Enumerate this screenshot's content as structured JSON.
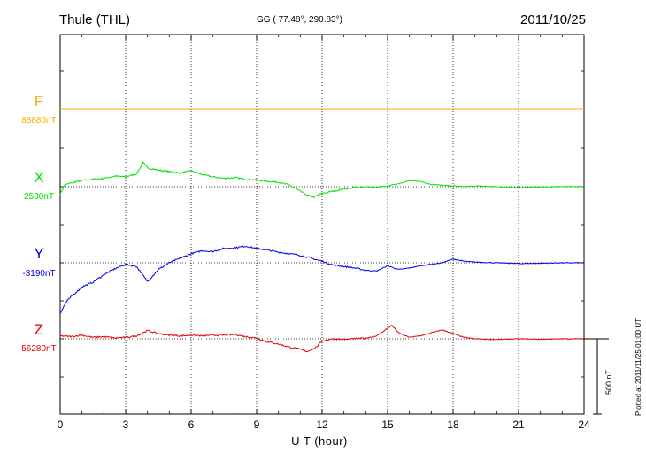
{
  "header": {
    "station": "Thule (THL)",
    "coords": "GG ( 77.48°, 290.83°)",
    "date": "2011/10/25"
  },
  "footer": {
    "xlabel": "U T (hour)",
    "plotted": "Plotted at 2011/11/25 01:00 UT",
    "scale_label": "500 nT"
  },
  "chart_data": {
    "type": "line",
    "title": "Thule (THL)",
    "xlabel": "U T (hour)",
    "ylabel": "",
    "xlim": [
      0,
      24
    ],
    "x_ticks": [
      0,
      3,
      6,
      9,
      12,
      15,
      18,
      21,
      24
    ],
    "grid": true,
    "scale_bar_nT": 500,
    "series": [
      {
        "name": "F",
        "baseline_label": "88880nT",
        "color": "#ffaa00",
        "x": [
          0,
          24
        ],
        "values": [
          0,
          0
        ]
      },
      {
        "name": "X",
        "baseline_label": "2530nT",
        "color": "#00e000",
        "x": [
          0,
          0.2,
          0.5,
          1,
          1.5,
          2,
          2.5,
          3,
          3.5,
          3.8,
          4,
          4.5,
          5,
          5.5,
          6,
          6.5,
          7,
          7.5,
          8,
          8.5,
          9,
          9.5,
          10,
          10.5,
          11,
          11.3,
          11.6,
          12,
          12.5,
          13,
          13.5,
          14,
          14.5,
          15,
          15.5,
          16,
          16.5,
          17,
          17.5,
          18,
          18.5,
          19,
          20,
          21,
          22,
          23,
          24
        ],
        "values": [
          -50,
          10,
          25,
          40,
          50,
          55,
          70,
          65,
          85,
          160,
          125,
          110,
          100,
          90,
          105,
          80,
          65,
          55,
          60,
          50,
          45,
          35,
          30,
          10,
          -30,
          -55,
          -70,
          -45,
          -30,
          -15,
          -5,
          0,
          -5,
          5,
          20,
          40,
          35,
          15,
          10,
          5,
          0,
          5,
          0,
          -5,
          -2,
          0,
          2
        ]
      },
      {
        "name": "Y",
        "baseline_label": "-3190nT",
        "color": "#0000e6",
        "x": [
          0,
          0.3,
          0.7,
          1,
          1.5,
          2,
          2.5,
          3,
          3.5,
          4,
          4.5,
          5,
          5.5,
          6,
          6.5,
          7,
          7.5,
          8,
          8.5,
          9,
          9.5,
          10,
          10.5,
          11,
          11.5,
          12,
          12.5,
          13,
          13.5,
          14,
          14.5,
          15,
          15.5,
          16,
          16.5,
          17,
          17.5,
          18,
          18.5,
          19,
          20,
          21,
          22,
          23,
          24
        ],
        "values": [
          -335,
          -255,
          -200,
          -160,
          -130,
          -80,
          -40,
          -10,
          -25,
          -125,
          -45,
          0,
          30,
          60,
          80,
          75,
          95,
          100,
          110,
          95,
          85,
          70,
          60,
          50,
          30,
          10,
          -15,
          -25,
          -35,
          -50,
          -55,
          -20,
          -45,
          -35,
          -20,
          -10,
          0,
          25,
          10,
          5,
          0,
          -5,
          -3,
          0,
          0
        ]
      },
      {
        "name": "Z",
        "baseline_label": "56280nT",
        "color": "#e60000",
        "x": [
          0,
          0.5,
          1,
          1.5,
          2,
          2.5,
          3,
          3.5,
          4,
          4.5,
          5,
          5.5,
          6,
          6.5,
          7,
          7.5,
          8,
          8.5,
          9,
          9.5,
          10,
          10.5,
          11,
          11.3,
          11.7,
          12,
          12.5,
          13,
          13.5,
          14,
          14.5,
          15,
          15.2,
          15.5,
          16,
          16.5,
          17,
          17.5,
          18,
          18.5,
          19,
          20,
          21,
          22,
          23,
          24
        ],
        "values": [
          20,
          15,
          25,
          10,
          15,
          5,
          10,
          20,
          55,
          35,
          25,
          20,
          25,
          20,
          25,
          25,
          30,
          15,
          5,
          -20,
          -35,
          -55,
          -70,
          -85,
          -60,
          -15,
          0,
          -5,
          0,
          5,
          20,
          70,
          90,
          40,
          10,
          20,
          40,
          60,
          35,
          10,
          0,
          -5,
          0,
          -3,
          0,
          0
        ]
      }
    ]
  }
}
